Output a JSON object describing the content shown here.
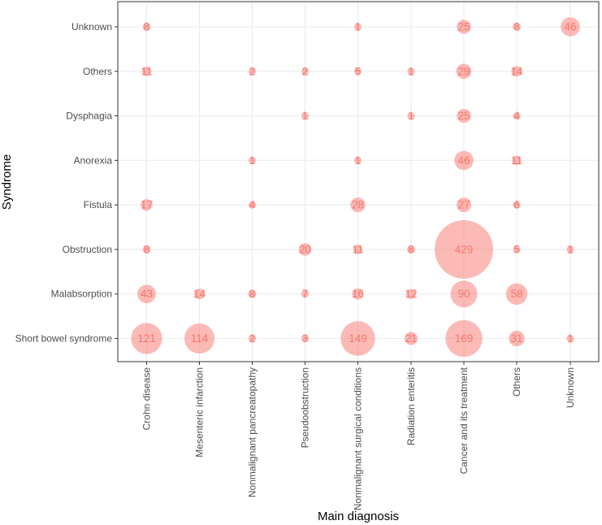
{
  "chart_data": {
    "type": "scatter",
    "subtype": "bubble",
    "xlabel": "Main diagnosis",
    "ylabel": "Syndrome",
    "x_categories": [
      "Crohn disease",
      "Mesenteric infarction",
      "Nonmalignant pancreatopathy",
      "Pseudoobstruction",
      "Nonmalignant surgical conditions",
      "Radiation enteritis",
      "Cancer and its treatment",
      "Others",
      "Unknown"
    ],
    "y_categories": [
      "Short bowel syndrome",
      "Malabsorption",
      "Obstruction",
      "Fistula",
      "Anorexia",
      "Dysphagia",
      "Others",
      "Unknown"
    ],
    "grid": true,
    "legend": "none",
    "colors": {
      "bubble": "#F8766D",
      "label": "#F8766D",
      "grid": "#ebebeb",
      "panel_border": "#333333"
    },
    "points": [
      {
        "x": "Crohn disease",
        "y": "Unknown",
        "value": 8
      },
      {
        "x": "Nonmalignant surgical conditions",
        "y": "Unknown",
        "value": 1
      },
      {
        "x": "Cancer and its treatment",
        "y": "Unknown",
        "value": 25
      },
      {
        "x": "Others",
        "y": "Unknown",
        "value": 8
      },
      {
        "x": "Unknown",
        "y": "Unknown",
        "value": 46
      },
      {
        "x": "Crohn disease",
        "y": "Others",
        "value": 11
      },
      {
        "x": "Nonmalignant pancreatopathy",
        "y": "Others",
        "value": 2
      },
      {
        "x": "Pseudoobstruction",
        "y": "Others",
        "value": 2
      },
      {
        "x": "Nonmalignant surgical conditions",
        "y": "Others",
        "value": 5
      },
      {
        "x": "Radiation enteritis",
        "y": "Others",
        "value": 1
      },
      {
        "x": "Cancer and its treatment",
        "y": "Others",
        "value": 29
      },
      {
        "x": "Others",
        "y": "Others",
        "value": 14
      },
      {
        "x": "Pseudoobstruction",
        "y": "Dysphagia",
        "value": 1
      },
      {
        "x": "Radiation enteritis",
        "y": "Dysphagia",
        "value": 1
      },
      {
        "x": "Cancer and its treatment",
        "y": "Dysphagia",
        "value": 25
      },
      {
        "x": "Others",
        "y": "Dysphagia",
        "value": 4
      },
      {
        "x": "Nonmalignant pancreatopathy",
        "y": "Anorexia",
        "value": 1
      },
      {
        "x": "Nonmalignant surgical conditions",
        "y": "Anorexia",
        "value": 1
      },
      {
        "x": "Cancer and its treatment",
        "y": "Anorexia",
        "value": 46
      },
      {
        "x": "Others",
        "y": "Anorexia",
        "value": 11
      },
      {
        "x": "Crohn disease",
        "y": "Fistula",
        "value": 17
      },
      {
        "x": "Nonmalignant pancreatopathy",
        "y": "Fistula",
        "value": 4
      },
      {
        "x": "Nonmalignant surgical conditions",
        "y": "Fistula",
        "value": 28
      },
      {
        "x": "Cancer and its treatment",
        "y": "Fistula",
        "value": 27
      },
      {
        "x": "Others",
        "y": "Fistula",
        "value": 6
      },
      {
        "x": "Crohn disease",
        "y": "Obstruction",
        "value": 8
      },
      {
        "x": "Pseudoobstruction",
        "y": "Obstruction",
        "value": 20
      },
      {
        "x": "Nonmalignant surgical conditions",
        "y": "Obstruction",
        "value": 11
      },
      {
        "x": "Radiation enteritis",
        "y": "Obstruction",
        "value": 8
      },
      {
        "x": "Cancer and its treatment",
        "y": "Obstruction",
        "value": 429
      },
      {
        "x": "Others",
        "y": "Obstruction",
        "value": 5
      },
      {
        "x": "Unknown",
        "y": "Obstruction",
        "value": 1
      },
      {
        "x": "Crohn disease",
        "y": "Malabsorption",
        "value": 43
      },
      {
        "x": "Mesenteric infarction",
        "y": "Malabsorption",
        "value": 14
      },
      {
        "x": "Nonmalignant pancreatopathy",
        "y": "Malabsorption",
        "value": 8
      },
      {
        "x": "Pseudoobstruction",
        "y": "Malabsorption",
        "value": 7
      },
      {
        "x": "Nonmalignant surgical conditions",
        "y": "Malabsorption",
        "value": 16
      },
      {
        "x": "Radiation enteritis",
        "y": "Malabsorption",
        "value": 12
      },
      {
        "x": "Cancer and its treatment",
        "y": "Malabsorption",
        "value": 90
      },
      {
        "x": "Others",
        "y": "Malabsorption",
        "value": 58
      },
      {
        "x": "Crohn disease",
        "y": "Short bowel syndrome",
        "value": 121
      },
      {
        "x": "Mesenteric infarction",
        "y": "Short bowel syndrome",
        "value": 114
      },
      {
        "x": "Nonmalignant pancreatopathy",
        "y": "Short bowel syndrome",
        "value": 2
      },
      {
        "x": "Pseudoobstruction",
        "y": "Short bowel syndrome",
        "value": 3
      },
      {
        "x": "Nonmalignant surgical conditions",
        "y": "Short bowel syndrome",
        "value": 149
      },
      {
        "x": "Radiation enteritis",
        "y": "Short bowel syndrome",
        "value": 21
      },
      {
        "x": "Cancer and its treatment",
        "y": "Short bowel syndrome",
        "value": 169
      },
      {
        "x": "Others",
        "y": "Short bowel syndrome",
        "value": 31
      },
      {
        "x": "Unknown",
        "y": "Short bowel syndrome",
        "value": 1
      }
    ]
  }
}
